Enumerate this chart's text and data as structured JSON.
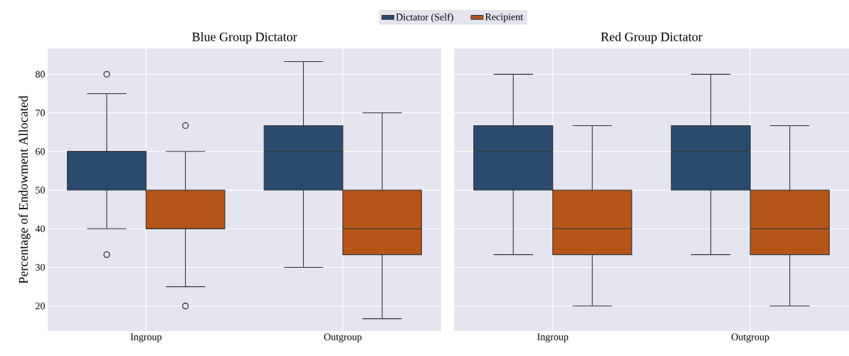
{
  "chart_data": [
    {
      "type": "box",
      "title": "Blue Group Dictator",
      "ylabel": "Percentage of Endowment Allocated",
      "categories": [
        "Ingroup",
        "Outgroup"
      ],
      "series": [
        {
          "name": "Dictator (Self)",
          "color": "#2a4b6e",
          "boxes": [
            {
              "low": 40,
              "q1": 50,
              "median": 60,
              "q3": 60,
              "high": 75,
              "outliers": [
                80,
                33.3
              ]
            },
            {
              "low": 30,
              "q1": 50,
              "median": 60,
              "q3": 66.7,
              "high": 83.3
            }
          ]
        },
        {
          "name": "Recipient",
          "color": "#b5551a",
          "boxes": [
            {
              "low": 25,
              "q1": 40,
              "median": 40,
              "q3": 50,
              "high": 60,
              "outliers": [
                66.7,
                20
              ]
            },
            {
              "low": 16.7,
              "q1": 33.3,
              "median": 40,
              "q3": 50,
              "high": 70
            }
          ]
        }
      ],
      "ylim": [
        13.5,
        86.7
      ],
      "yticks": [
        20,
        30,
        40,
        50,
        60,
        70,
        80
      ],
      "grid": true,
      "legend": "top"
    },
    {
      "type": "box",
      "title": "Red Group Dictator",
      "categories": [
        "Ingroup",
        "Outgroup"
      ],
      "series": [
        {
          "color": "#2a4b6e",
          "boxes": [
            {
              "low": 33.3,
              "q1": 50,
              "median": 60,
              "q3": 66.7,
              "high": 80
            },
            {
              "low": 33.3,
              "q1": 50,
              "median": 60,
              "q3": 66.7,
              "high": 80
            }
          ]
        },
        {
          "color": "#b5551a",
          "boxes": [
            {
              "low": 20,
              "q1": 33.3,
              "median": 40,
              "q3": 50,
              "high": 66.7
            },
            {
              "low": 20,
              "q1": 33.3,
              "median": 40,
              "q3": 50,
              "high": 66.7
            }
          ]
        }
      ],
      "ylim": [
        13.5,
        86.7
      ],
      "yticks": [
        20,
        30,
        40,
        50,
        60,
        70,
        80
      ],
      "grid": true,
      "tick_labels": "x"
    }
  ]
}
